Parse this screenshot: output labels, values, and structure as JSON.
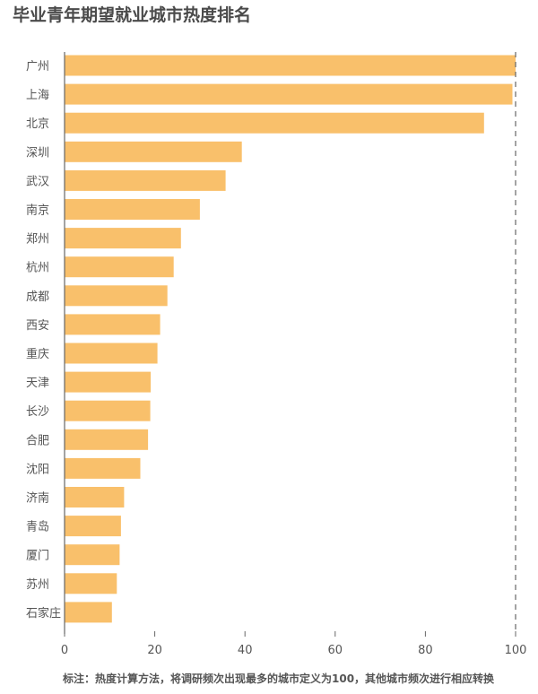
{
  "title": "毕业青年期望就业城市热度排名",
  "footnote": "标注：热度计算方法，将调研频次出现最多的城市定义为100，其他城市频次进行相应转换",
  "colors": {
    "bar": "#f9c06b",
    "axis": "#666666",
    "tick_text": "#555555",
    "reference_line": "#666666"
  },
  "chart_data": {
    "type": "bar",
    "orientation": "horizontal",
    "title": "毕业青年期望就业城市热度排名",
    "xlabel": "",
    "ylabel": "",
    "xlim": [
      0,
      100
    ],
    "xticks": [
      0,
      20,
      40,
      60,
      80,
      100
    ],
    "grid": false,
    "reference_line": 100,
    "categories": [
      "广州",
      "上海",
      "北京",
      "深圳",
      "武汉",
      "南京",
      "郑州",
      "杭州",
      "成都",
      "西安",
      "重庆",
      "天津",
      "长沙",
      "合肥",
      "沈阳",
      "济南",
      "青岛",
      "厦门",
      "苏州",
      "石家庄"
    ],
    "values": [
      100,
      99.3,
      93.0,
      39.3,
      35.7,
      30.0,
      25.8,
      24.2,
      22.8,
      21.2,
      20.6,
      19.1,
      19.0,
      18.5,
      16.8,
      13.2,
      12.5,
      12.2,
      11.6,
      10.5
    ]
  }
}
